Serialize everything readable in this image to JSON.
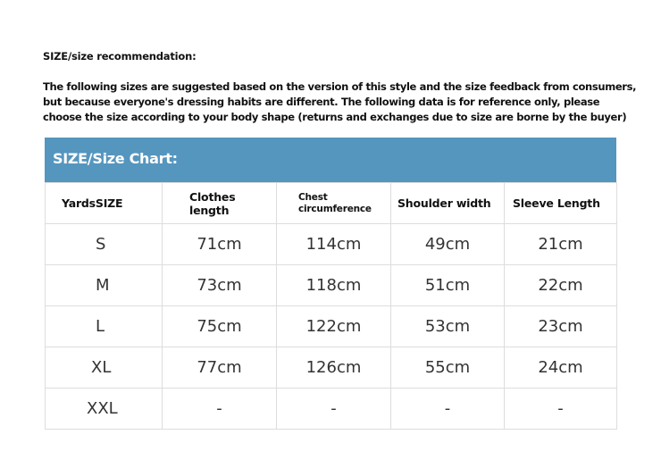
{
  "heading": "SIZE/size recommendation:",
  "intro_lines": [
    "The following sizes are suggested based on the version of this style and the size feedback from consumers,",
    "but because everyone's dressing habits are different. The following data is for reference only, please",
    "choose the size according to your body shape (returns and exchanges due to size are borne by the buyer)"
  ],
  "chart_title": "SIZE/Size Chart:",
  "header_color": "#5596bf",
  "columns": [
    "YardsSIZE",
    "Clothes length",
    "Chest circumference",
    "Shoulder width",
    "Sleeve Length"
  ],
  "rows": [
    [
      "S",
      "71cm",
      "114cm",
      "49cm",
      "21cm"
    ],
    [
      "M",
      "73cm",
      "118cm",
      "51cm",
      "22cm"
    ],
    [
      "L",
      "75cm",
      "122cm",
      "53cm",
      "23cm"
    ],
    [
      "XL",
      "77cm",
      "126cm",
      "55cm",
      "24cm"
    ],
    [
      "XXL",
      "-",
      "-",
      "-",
      "-"
    ]
  ]
}
